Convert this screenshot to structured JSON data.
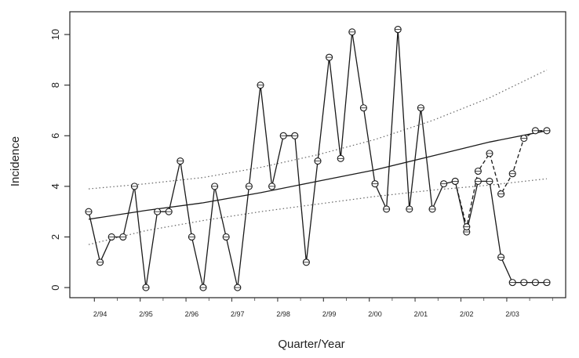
{
  "chart_data": {
    "type": "line",
    "xlabel": "Quarter/Year",
    "ylabel": "Incidence",
    "x_range": [
      0,
      41
    ],
    "ylim": [
      -0.4,
      10.9
    ],
    "y_ticks": [
      0,
      2,
      4,
      6,
      8,
      10
    ],
    "x_ticks": [
      {
        "label": "2/94",
        "x": 1
      },
      {
        "label": "2/95",
        "x": 5
      },
      {
        "label": "2/96",
        "x": 9
      },
      {
        "label": "2/97",
        "x": 13
      },
      {
        "label": "2/98",
        "x": 17
      },
      {
        "label": "2/99",
        "x": 21
      },
      {
        "label": "2/00",
        "x": 25
      },
      {
        "label": "2/01",
        "x": 29
      },
      {
        "label": "2/02",
        "x": 33
      },
      {
        "label": "2/03",
        "x": 37
      }
    ],
    "grid": false,
    "series": [
      {
        "style": "solid-with-open-circles",
        "color": "#1a1a1a",
        "x": [
          0,
          1,
          2,
          3,
          4,
          5,
          6,
          7,
          8,
          9,
          10,
          11,
          12,
          13,
          14,
          15,
          16,
          17,
          18,
          19,
          20,
          21,
          22,
          23,
          24,
          25,
          26,
          27,
          28,
          29,
          30,
          31,
          32,
          33,
          34,
          35,
          36,
          37,
          38,
          39,
          40
        ],
        "y": [
          3,
          1,
          2,
          2,
          4,
          0,
          3,
          3,
          5,
          2,
          0,
          4,
          2,
          0,
          4,
          8,
          4,
          6,
          6,
          1,
          5,
          9.1,
          5.1,
          10.1,
          7.1,
          4.1,
          3.1,
          10.2,
          3.1,
          7.1,
          3.1,
          4.1,
          4.2,
          2.2,
          4.2,
          4.2,
          1.2,
          0.2,
          0.2,
          0.2,
          0.2
        ]
      },
      {
        "style": "dashed-with-open-circles",
        "color": "#1a1a1a",
        "x": [
          32,
          33,
          34,
          35,
          36,
          37,
          38,
          39,
          40
        ],
        "y": [
          4.2,
          2.4,
          4.6,
          5.3,
          3.7,
          4.5,
          5.9,
          6.2,
          6.2
        ]
      },
      {
        "style": "solid-trend-curve",
        "color": "#1a1a1a",
        "x": [
          0,
          5,
          10,
          15,
          20,
          25,
          30,
          35,
          40
        ],
        "y": [
          2.7,
          3.05,
          3.35,
          3.75,
          4.2,
          4.65,
          5.2,
          5.75,
          6.2
        ]
      },
      {
        "style": "dotted-upper-band",
        "color": "#666666",
        "x": [
          0,
          5,
          10,
          15,
          20,
          25,
          30,
          35,
          40
        ],
        "y": [
          3.9,
          4.1,
          4.35,
          4.75,
          5.25,
          5.85,
          6.6,
          7.5,
          8.6
        ]
      },
      {
        "style": "dotted-lower-band",
        "color": "#666666",
        "x": [
          0,
          5,
          10,
          15,
          20,
          25,
          30,
          35,
          40
        ],
        "y": [
          1.7,
          2.25,
          2.65,
          3.0,
          3.3,
          3.6,
          3.85,
          4.05,
          4.3
        ]
      }
    ]
  }
}
